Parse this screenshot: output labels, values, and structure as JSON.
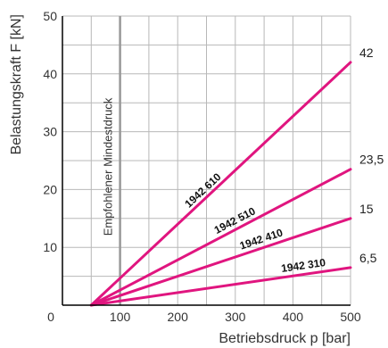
{
  "chart_data": {
    "type": "line",
    "xlabel": "Betriebsdruck p [bar]",
    "ylabel": "Belastungskraft F [kN]",
    "xlim": [
      0,
      500
    ],
    "ylim": [
      0,
      50
    ],
    "x_ticks": [
      "0",
      "100",
      "200",
      "300",
      "400",
      "500"
    ],
    "y_ticks": [
      "10",
      "20",
      "30",
      "40",
      "50"
    ],
    "grid": true,
    "annotation": {
      "text": "Empfohlener Mindestdruck",
      "x": 100
    },
    "series": [
      {
        "name": "1942 610",
        "points": [
          [
            50,
            0
          ],
          [
            500,
            42
          ]
        ],
        "end_label": "42"
      },
      {
        "name": "1942 510",
        "points": [
          [
            50,
            0
          ],
          [
            500,
            23.5
          ]
        ],
        "end_label": "23,5"
      },
      {
        "name": "1942 410",
        "points": [
          [
            50,
            0
          ],
          [
            500,
            15
          ]
        ],
        "end_label": "15"
      },
      {
        "name": "1942 310",
        "points": [
          [
            50,
            0
          ],
          [
            500,
            6.5
          ]
        ],
        "end_label": "6,5"
      }
    ]
  },
  "colors": {
    "series": "#e0157f",
    "grid": "#b8b8b8",
    "annotation_line": "#999999",
    "axis": "#000000"
  }
}
